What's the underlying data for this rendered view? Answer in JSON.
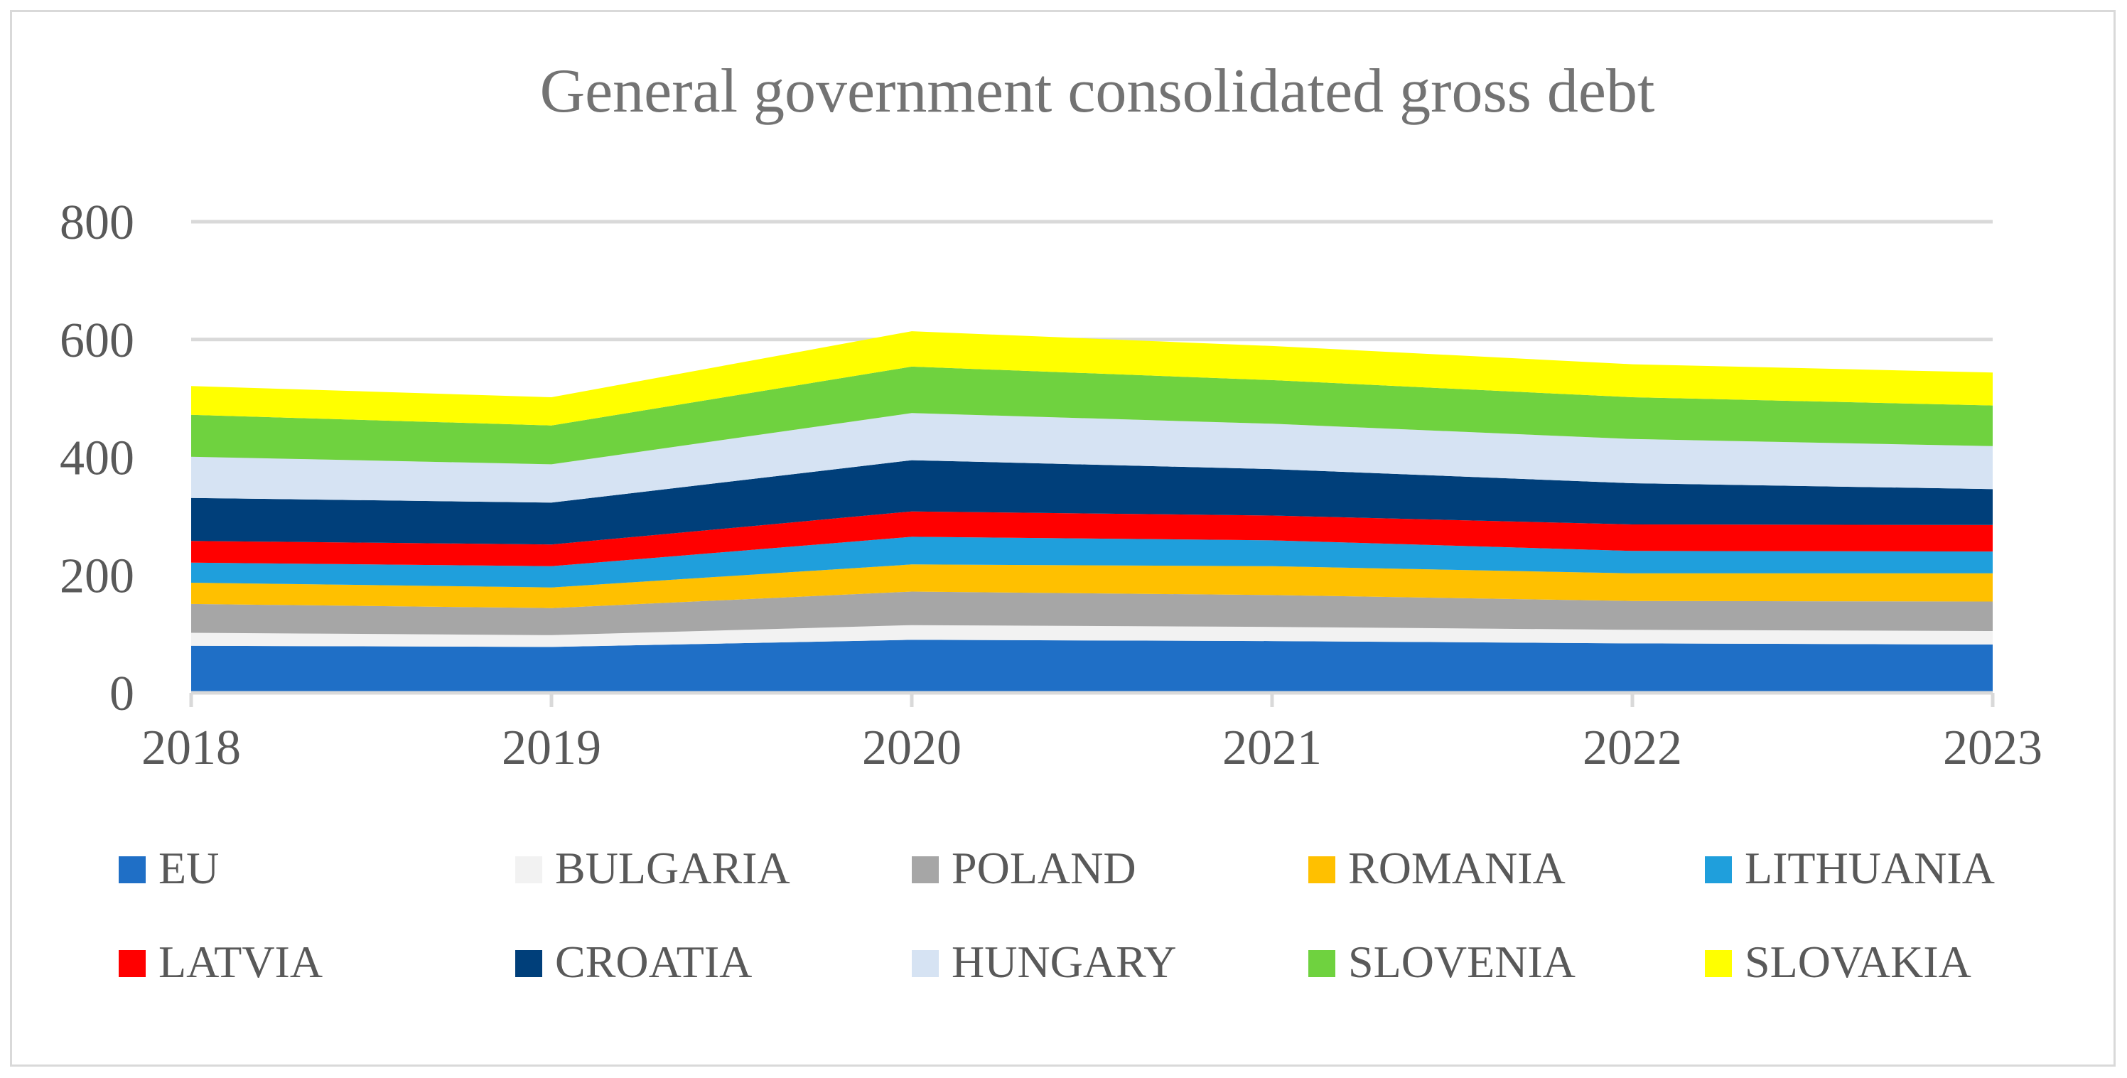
{
  "chart_data": {
    "type": "area",
    "stacked": true,
    "title": "General government consolidated gross debt",
    "xlabel": "",
    "ylabel": "",
    "categories": [
      "2018",
      "2019",
      "2020",
      "2021",
      "2022",
      "2023"
    ],
    "ylim": [
      0,
      800
    ],
    "yticks": [
      "0",
      "200",
      "400",
      "600",
      "800"
    ],
    "grid": true,
    "legend_position": "bottom",
    "series": [
      {
        "name": "EU",
        "color": "#1f6fc6",
        "values": [
          80,
          78,
          90,
          88,
          84,
          82
        ]
      },
      {
        "name": "BULGARIA",
        "color": "#f2f2f2",
        "values": [
          22,
          20,
          25,
          24,
          23,
          23
        ]
      },
      {
        "name": "POLAND",
        "color": "#a6a6a6",
        "values": [
          49,
          46,
          57,
          54,
          49,
          50
        ]
      },
      {
        "name": "ROMANIA",
        "color": "#ffc000",
        "values": [
          36,
          35,
          46,
          49,
          47,
          48
        ]
      },
      {
        "name": "LITHUANIA",
        "color": "#1f9fdc",
        "values": [
          34,
          36,
          47,
          44,
          38,
          37
        ]
      },
      {
        "name": "LATVIA",
        "color": "#ff0000",
        "values": [
          37,
          37,
          43,
          42,
          45,
          45
        ]
      },
      {
        "name": "CROATIA",
        "color": "#003f7a",
        "values": [
          73,
          71,
          87,
          79,
          70,
          61
        ]
      },
      {
        "name": "HUNGARY",
        "color": "#d6e3f3",
        "values": [
          70,
          65,
          80,
          77,
          75,
          73
        ]
      },
      {
        "name": "SLOVENIA",
        "color": "#6fd23f",
        "values": [
          71,
          66,
          79,
          74,
          71,
          69
        ]
      },
      {
        "name": "SLOVAKIA",
        "color": "#ffff00",
        "values": [
          49,
          48,
          60,
          58,
          56,
          56
        ]
      }
    ]
  }
}
